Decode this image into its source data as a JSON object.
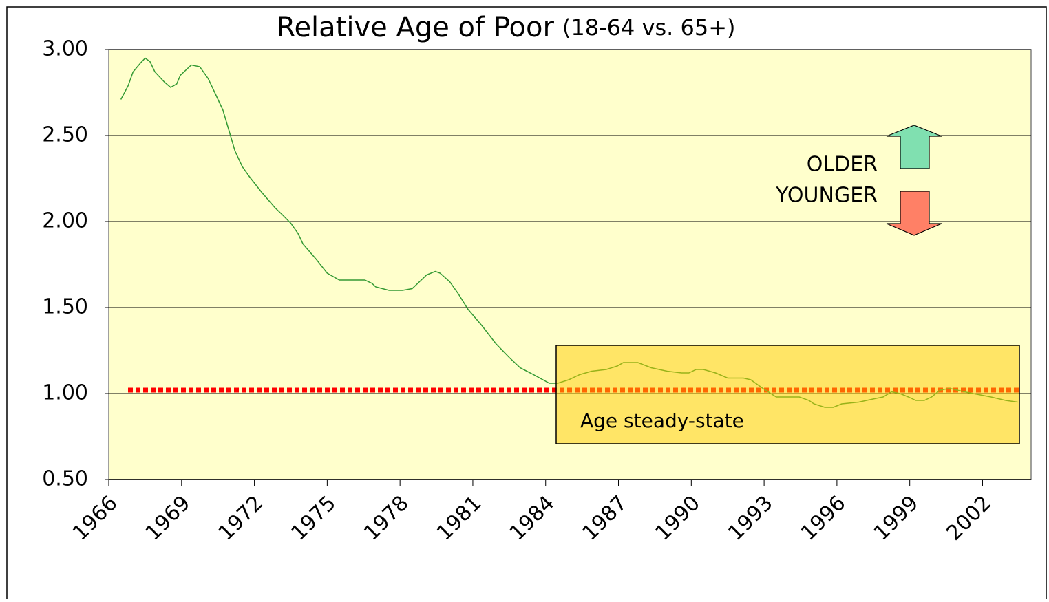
{
  "chart_data": {
    "type": "line",
    "title": "Relative Age of Poor",
    "subtitle": "(18-64 vs. 65+)",
    "color": "#339933",
    "xlim": [
      1966,
      2004
    ],
    "xticks": [
      1966,
      1969,
      1972,
      1975,
      1978,
      1981,
      1984,
      1987,
      1990,
      1993,
      1996,
      1999,
      2002
    ],
    "ylim": [
      0.5,
      3
    ],
    "yticks": [
      {
        "value": 0.5,
        "label": "0.50"
      },
      {
        "value": 1,
        "label": "1.00"
      },
      {
        "value": 1.5,
        "label": "1.50"
      },
      {
        "value": 2,
        "label": "2.00"
      },
      {
        "value": 2.5,
        "label": "2.50"
      },
      {
        "value": 3,
        "label": "3.00"
      }
    ],
    "grid": true,
    "x": [
      1966.5,
      1966.8,
      1967.0,
      1967.3,
      1967.5,
      1967.7,
      1967.9,
      1968.3,
      1968.55,
      1968.8,
      1968.95,
      1969.4,
      1969.75,
      1970.1,
      1970.4,
      1970.7,
      1970.95,
      1971.2,
      1971.5,
      1971.8,
      1972.3,
      1972.85,
      1973.15,
      1973.5,
      1973.8,
      1974.0,
      1974.55,
      1975.0,
      1975.5,
      1976.55,
      1976.85,
      1977.0,
      1977.55,
      1978.1,
      1978.5,
      1978.8,
      1979.1,
      1979.45,
      1979.65,
      1980.05,
      1980.4,
      1980.8,
      1981.4,
      1981.95,
      1982.5,
      1982.95,
      1983.5,
      1984.15,
      1984.5,
      1984.95,
      1985.4,
      1985.9,
      1986.5,
      1986.95,
      1987.2,
      1987.8,
      1988.35,
      1989.0,
      1989.6,
      1989.9,
      1990.2,
      1990.5,
      1991.0,
      1991.5,
      1992.15,
      1992.45,
      1992.95,
      1993.5,
      1994.45,
      1994.85,
      1995.05,
      1995.5,
      1995.85,
      1996.2,
      1996.9,
      1997.55,
      1997.9,
      1998.25,
      1998.6,
      1998.95,
      1999.25,
      1999.6,
      1999.9,
      2000.25,
      2000.65,
      2001.25,
      2002.35,
      2002.95,
      2003.45
    ],
    "values": [
      2.71,
      2.79,
      2.87,
      2.92,
      2.95,
      2.93,
      2.87,
      2.81,
      2.78,
      2.8,
      2.85,
      2.91,
      2.9,
      2.83,
      2.74,
      2.65,
      2.53,
      2.41,
      2.32,
      2.26,
      2.17,
      2.08,
      2.04,
      1.99,
      1.93,
      1.87,
      1.78,
      1.7,
      1.66,
      1.66,
      1.64,
      1.62,
      1.6,
      1.6,
      1.61,
      1.65,
      1.69,
      1.71,
      1.7,
      1.65,
      1.58,
      1.49,
      1.39,
      1.29,
      1.21,
      1.15,
      1.11,
      1.06,
      1.06,
      1.08,
      1.11,
      1.13,
      1.14,
      1.16,
      1.18,
      1.18,
      1.15,
      1.13,
      1.12,
      1.12,
      1.14,
      1.14,
      1.12,
      1.09,
      1.09,
      1.08,
      1.03,
      0.98,
      0.98,
      0.96,
      0.94,
      0.92,
      0.92,
      0.94,
      0.95,
      0.97,
      0.98,
      1.01,
      1.0,
      0.98,
      0.96,
      0.96,
      0.98,
      1.02,
      1.03,
      1.01,
      0.98,
      0.96,
      0.95
    ],
    "reference_line": {
      "value": 1.02,
      "color": "#ff0000"
    },
    "annotations": {
      "older": "OLDER",
      "younger": "YOUNGER",
      "steady_state": "Age steady-state"
    }
  }
}
